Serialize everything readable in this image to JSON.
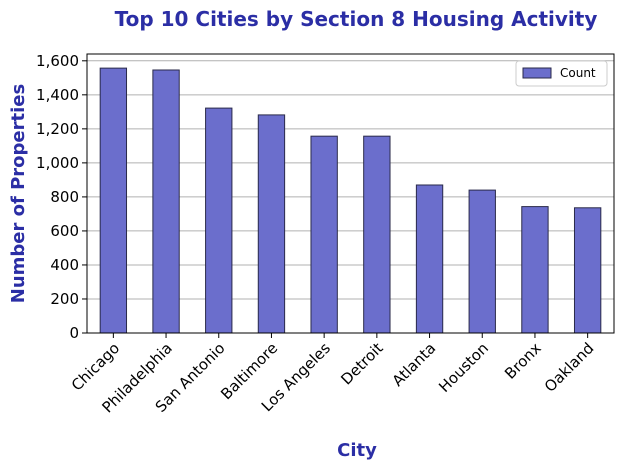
{
  "chart_data": {
    "type": "bar",
    "title": "Top 10 Cities by Section 8 Housing Activity",
    "xlabel": "City",
    "ylabel": "Number of Properties",
    "categories": [
      "Chicago",
      "Philadelphia",
      "San Antonio",
      "Baltimore",
      "Los Angeles",
      "Detroit",
      "Atlanta",
      "Houston",
      "Bronx",
      "Oakland"
    ],
    "series": [
      {
        "name": "Count",
        "values": [
          1557,
          1546,
          1322,
          1282,
          1157,
          1157,
          870,
          840,
          743,
          736
        ]
      }
    ],
    "ylim": [
      0,
      1640
    ],
    "yticks": [
      0,
      200,
      400,
      600,
      800,
      1000,
      1200,
      1400,
      1600
    ],
    "ytick_labels": [
      "0",
      "200",
      "400",
      "600",
      "800",
      "1,000",
      "1,200",
      "1,400",
      "1,600"
    ],
    "grid": "y",
    "legend_position": "top-right",
    "colors": {
      "bar": "#6b6ecc",
      "bar_edge": "#2a2a4a",
      "title": "#2b2ea5",
      "grid": "#b0b0b0"
    }
  }
}
